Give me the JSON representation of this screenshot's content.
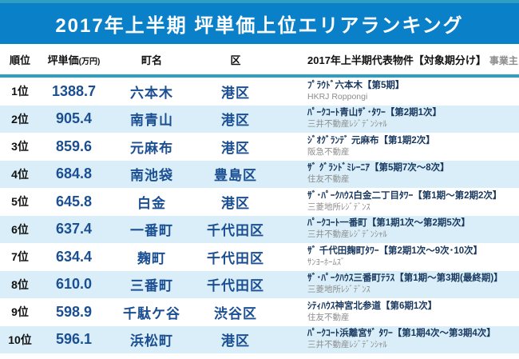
{
  "title": "2017年上半期 坪単価上位エリアランキング",
  "header": {
    "rank": "順位",
    "price_main": "坪単価",
    "price_unit": "(万円)",
    "town": "町名",
    "ward": "区",
    "property": "2017年上半期代表物件【対象期分け】",
    "developer": "事業主"
  },
  "colors": {
    "accent_teal": "#2E9EC2",
    "band_blue": "#0A80C8",
    "row_alt_blue": "#D9EEF8",
    "value_blue": "#1B4F93",
    "property_navy": "#17375E",
    "developer_gray": "#8C8C8C"
  },
  "chart_data": {
    "type": "table",
    "title": "2017年上半期 坪単価上位エリアランキング",
    "columns": [
      "順位",
      "坪単価(万円)",
      "町名",
      "区",
      "2017年上半期代表物件【対象期分け】",
      "事業主"
    ],
    "rows": [
      [
        "1位",
        "1388.7",
        "六本木",
        "港区",
        "ﾌﾟﾗｳﾄﾞ六本木【第5期】",
        "HKRJ Roppongi"
      ],
      [
        "2位",
        "905.4",
        "南青山",
        "港区",
        "ﾊﾟｰｸｺｰﾄ青山ｻﾞ･ﾀﾜｰ【第2期1次】",
        "三井不動産ﾚｼﾞﾃﾞﾝｼｬﾙ"
      ],
      [
        "3位",
        "859.6",
        "元麻布",
        "港区",
        "ｼﾞｵｸﾞﾗﾝﾃﾞ 元麻布【第1期2次】",
        "阪急不動産"
      ],
      [
        "4位",
        "684.8",
        "南池袋",
        "豊島区",
        "ｻﾞ ｸﾞﾗﾝﾄﾞﾐﾚｰﾆｱ【第5期7次～8次】",
        "住友不動産"
      ],
      [
        "5位",
        "645.8",
        "白金",
        "港区",
        "ｻﾞ･ﾊﾟｰｸﾊｳｽ白金二丁目ﾀﾜｰ【第1期～第2期2次】",
        "三菱地所ﾚｼﾞﾃﾞﾝｽ"
      ],
      [
        "6位",
        "637.4",
        "一番町",
        "千代田区",
        "ﾊﾟｰｸｺｰﾄ一番町【第1期1次～第2期5次】",
        "三井不動産ﾚｼﾞﾃﾞﾝｼｬﾙ"
      ],
      [
        "7位",
        "634.4",
        "麹町",
        "千代田区",
        "ｻﾞ 千代田麹町ﾀﾜｰ【第2期1次～9次･10次】",
        "ｻﾝﾖｰﾎｰﾑｽﾞ"
      ],
      [
        "8位",
        "610.0",
        "三番町",
        "千代田区",
        "ｻﾞ･ﾊﾟｰｸﾊｳｽ三番町ﾃﾗｽ【第1期～第3期(最終期)】",
        "三菱地所ﾚｼﾞﾃﾞﾝｽ"
      ],
      [
        "9位",
        "598.9",
        "千駄ケ谷",
        "渋谷区",
        "ｼﾃｨﾊｳｽ神宮北参道【第6期1次】",
        "住友不動産"
      ],
      [
        "10位",
        "596.1",
        "浜松町",
        "港区",
        "ﾊﾟｰｸｺｰﾄ浜離宮ｻﾞ ﾀﾜｰ【第1期4次～第3期4次】",
        "三井不動産ﾚｼﾞﾃﾞﾝｼｬﾙ"
      ]
    ],
    "tsubo_price_values": [
      1388.7,
      905.4,
      859.6,
      684.8,
      645.8,
      637.4,
      634.4,
      610.0,
      598.9,
      596.1
    ]
  }
}
